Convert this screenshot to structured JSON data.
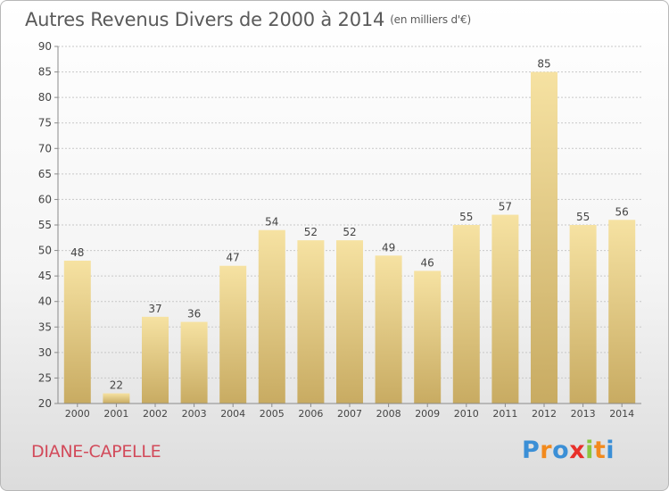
{
  "title": "Autres Revenus Divers de 2000 à 2014",
  "subtitle": "(en milliers d'€)",
  "city": "DIANE-CAPELLE",
  "logo": {
    "text": "Proxiti",
    "letters": [
      "P",
      "r",
      "o",
      "x",
      "i",
      "t",
      "i"
    ],
    "colors": [
      "#3b8fd6",
      "#f28a1d",
      "#3b8fd6",
      "#e8302a",
      "#8cc63f",
      "#f28a1d",
      "#3b8fd6"
    ]
  },
  "colors": {
    "bar_light": "#f6e2a2",
    "bar_dark": "#c8ab62",
    "axis": "#8a8a8a",
    "grid": "#c8c8c8",
    "text": "#444444"
  },
  "chart_data": {
    "type": "bar",
    "categories": [
      "2000",
      "2001",
      "2002",
      "2003",
      "2004",
      "2005",
      "2006",
      "2007",
      "2008",
      "2009",
      "2010",
      "2011",
      "2012",
      "2013",
      "2014"
    ],
    "values": [
      48,
      22,
      37,
      36,
      47,
      54,
      52,
      52,
      49,
      46,
      55,
      57,
      85,
      55,
      56
    ],
    "ylim": [
      20,
      90
    ],
    "yticks": [
      20,
      25,
      30,
      35,
      40,
      45,
      50,
      55,
      60,
      65,
      70,
      75,
      80,
      85,
      90
    ],
    "grid": true,
    "xlabel": "",
    "ylabel": ""
  }
}
